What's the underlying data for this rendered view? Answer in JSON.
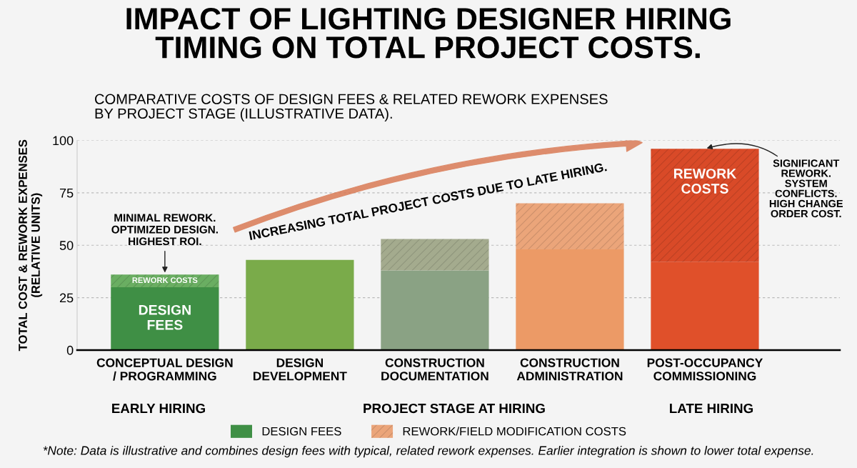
{
  "chart_data": {
    "type": "bar",
    "stacked": true,
    "title": "IMPACT OF LIGHTING DESIGNER HIRING\nTIMING ON TOTAL PROJECT COSTS.",
    "subtitle": "COMPARATIVE COSTS OF DESIGN FEES & RELATED REWORK EXPENSES\nBY PROJECT STAGE (ILLUSTRATIVE DATA).",
    "xlabel": "PROJECT STAGE AT HIRING",
    "ylabel": "TOTAL COST & REWORK EXPENSES\n(RELATIVE UNITS)",
    "categories": [
      "CONCEPTUAL DESIGN\n/ PROGRAMMING",
      "DESIGN\nDEVELOPMENT",
      "CONSTRUCTION\nDOCUMENTATION",
      "CONSTRUCTION\nADMINISTRATION",
      "POST-OCCUPANCY\nCOMMISSIONING"
    ],
    "series": [
      {
        "name": "DESIGN FEES",
        "color": "#3f8f45",
        "colors": [
          "#3f8f45",
          "#7aab4a",
          "#8aa284",
          "#ec9a66",
          "#e0502a"
        ],
        "values": [
          30,
          43,
          38,
          48,
          42
        ]
      },
      {
        "name": "REWORK/FIELD MODIFICATION COSTS",
        "color": "#eba57a",
        "colors": [
          "#6aae62",
          null,
          "#a4ab8e",
          "#eba57a",
          "#d94a28"
        ],
        "values": [
          6,
          null,
          15,
          22,
          54
        ]
      }
    ],
    "ylim": [
      0,
      100
    ],
    "yticks": [
      0,
      25,
      50,
      75,
      100
    ],
    "grid": "y",
    "legend": "bottom",
    "annotations": [
      {
        "text": "MINIMAL REWORK.\nOPTIMIZED DESIGN.\nHIGHEST ROI.",
        "x": "CONCEPTUAL DESIGN\n/ PROGRAMMING",
        "y": 36
      },
      {
        "text": "SIGNIFICANT\nREWORK.\nSYSTEM\nCONFLICTS.\nHIGH CHANGE\nORDER COST.",
        "x": "POST-OCCUPANCY\nCOMMISSIONING",
        "y": 96
      },
      "REWORK COSTS",
      "DESIGN\nFEES",
      "REWORK\nCOSTS",
      "INCREASING TOTAL PROJECT COSTS DUE TO LATE HIRING.",
      "EARLY HIRING",
      "LATE HIRING",
      "*Note: Data is illustrative and combines design fees with typical, related rework expenses. Earlier integration is shown to lower total expense."
    ]
  }
}
